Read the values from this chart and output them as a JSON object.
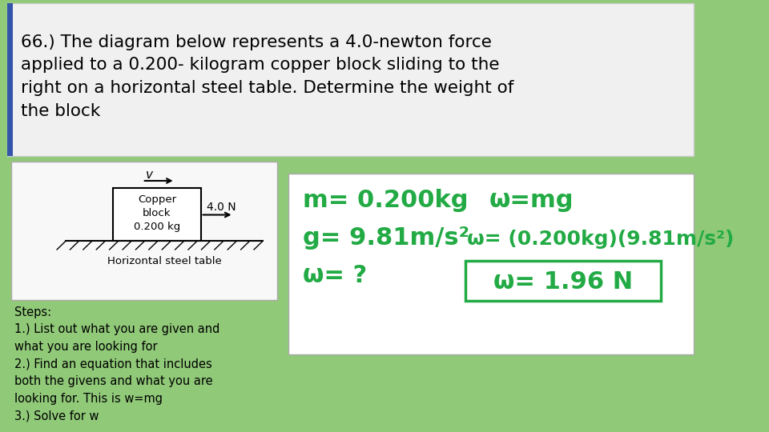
{
  "bg_color": "#90c978",
  "title_bg": "#f0f0f0",
  "title_text": "66.) The diagram below represents a 4.0-newton force\napplied to a 0.200- kilogram copper block sliding to the\nright on a horizontal steel table. Determine the weight of\nthe block",
  "title_bar_color": "#3355aa",
  "steps_text": "Steps:\n1.) List out what you are given and\nwhat you are looking for\n2.) Find an equation that includes\nboth the givens and what you are\nlooking for. This is w=mg\n3.) Solve for w",
  "diagram_bg": "#f8f8f8",
  "solution_bg": "#ffffff",
  "green_color": "#22aa44",
  "block_label": "Copper\nblock\n0.200 kg",
  "force_label": "4.0 N",
  "table_label": "Horizontal steel table",
  "velocity_label": "v",
  "given_line1": "m= 0.200kg",
  "given_line2": "g= 9.81m/s²",
  "given_line3": "ω= ?",
  "eq_line1": "ω=mg",
  "eq_line2": "ω= (0.200kg)(9.81m/s²)",
  "eq_line3": "ω= 1.96 N"
}
